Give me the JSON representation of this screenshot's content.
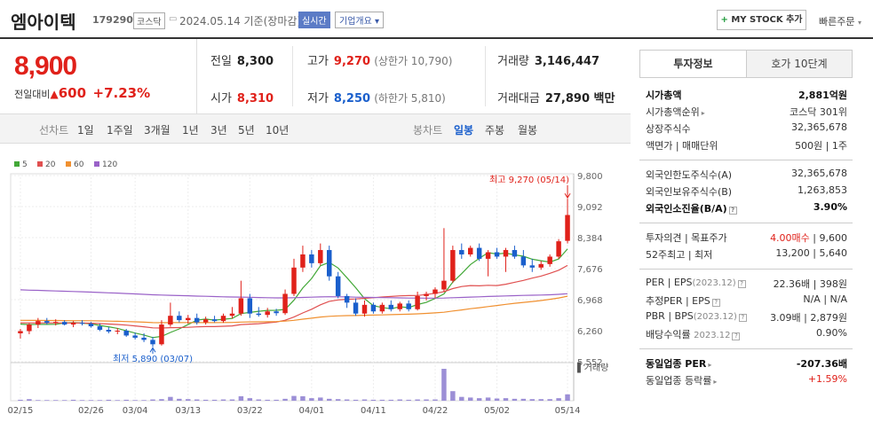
{
  "header": {
    "name": "엠아이텍",
    "code": "179290",
    "market": "코스닥",
    "date": "2024.05.14 기준(장마감)",
    "realtime": "실시간",
    "company_info": "기업개요",
    "mystock": "MY STOCK 추가",
    "quick_order": "빠른주문"
  },
  "price": {
    "current": "8,900",
    "change_label": "전일대비",
    "change": "600",
    "change_pct": "+7.23%"
  },
  "stats": {
    "prev_label": "전일",
    "prev": "8,300",
    "open_label": "시가",
    "open": "8,310",
    "high_label": "고가",
    "high": "9,270",
    "high_limit": "(상한가 10,790)",
    "low_label": "저가",
    "low": "8,250",
    "low_limit": "(하한가 5,810)",
    "volume_label": "거래량",
    "volume": "3,146,447",
    "amount_label": "거래대금",
    "amount": "27,890 백만"
  },
  "periods": {
    "line_label": "선차트",
    "line_items": [
      "1일",
      "1주일",
      "3개월",
      "1년",
      "3년",
      "5년",
      "10년"
    ],
    "candle_label": "봉차트",
    "candle_items": [
      "일봉",
      "주봉",
      "월봉"
    ],
    "selected_candle": "일봉"
  },
  "chart_data": {
    "type": "candlestick",
    "legend": [
      {
        "name": "5",
        "color": "#43a838"
      },
      {
        "name": "20",
        "color": "#e05050"
      },
      {
        "name": "60",
        "color": "#f09030"
      },
      {
        "name": "120",
        "color": "#9a62c8"
      }
    ],
    "y_ticks": [
      "9,800",
      "9,092",
      "8,384",
      "7,676",
      "6,968",
      "6,260",
      "5,552"
    ],
    "ylim": [
      5552,
      9800
    ],
    "x_ticks": [
      "02/15",
      "02/26",
      "03/04",
      "03/13",
      "03/22",
      "04/01",
      "04/11",
      "04/22",
      "05/02",
      "05/14"
    ],
    "high_annotation": "최고 9,270 (05/14)",
    "low_annotation": "최저 5,890 (03/07)",
    "volume_label": "거래량",
    "candles": [
      {
        "o": 6200,
        "h": 6300,
        "l": 6080,
        "c": 6250
      },
      {
        "o": 6250,
        "h": 6430,
        "l": 6180,
        "c": 6400
      },
      {
        "o": 6400,
        "h": 6550,
        "l": 6320,
        "c": 6480
      },
      {
        "o": 6480,
        "h": 6550,
        "l": 6400,
        "c": 6440
      },
      {
        "o": 6440,
        "h": 6520,
        "l": 6380,
        "c": 6460
      },
      {
        "o": 6460,
        "h": 6500,
        "l": 6380,
        "c": 6400
      },
      {
        "o": 6400,
        "h": 6480,
        "l": 6340,
        "c": 6440
      },
      {
        "o": 6440,
        "h": 6500,
        "l": 6380,
        "c": 6420
      },
      {
        "o": 6420,
        "h": 6460,
        "l": 6330,
        "c": 6360
      },
      {
        "o": 6360,
        "h": 6420,
        "l": 6250,
        "c": 6280
      },
      {
        "o": 6280,
        "h": 6340,
        "l": 6200,
        "c": 6240
      },
      {
        "o": 6240,
        "h": 6320,
        "l": 6180,
        "c": 6260
      },
      {
        "o": 6260,
        "h": 6300,
        "l": 6120,
        "c": 6150
      },
      {
        "o": 6150,
        "h": 6220,
        "l": 6060,
        "c": 6100
      },
      {
        "o": 6100,
        "h": 6200,
        "l": 6000,
        "c": 6050
      },
      {
        "o": 6050,
        "h": 6120,
        "l": 5890,
        "c": 5950
      },
      {
        "o": 5950,
        "h": 6500,
        "l": 5920,
        "c": 6400
      },
      {
        "o": 6400,
        "h": 6900,
        "l": 6350,
        "c": 6600
      },
      {
        "o": 6600,
        "h": 6700,
        "l": 6450,
        "c": 6500
      },
      {
        "o": 6500,
        "h": 6620,
        "l": 6420,
        "c": 6550
      },
      {
        "o": 6550,
        "h": 6650,
        "l": 6400,
        "c": 6450
      },
      {
        "o": 6450,
        "h": 6580,
        "l": 6400,
        "c": 6520
      },
      {
        "o": 6520,
        "h": 6600,
        "l": 6450,
        "c": 6480
      },
      {
        "o": 6480,
        "h": 6650,
        "l": 6440,
        "c": 6600
      },
      {
        "o": 6600,
        "h": 6800,
        "l": 6540,
        "c": 6650
      },
      {
        "o": 6650,
        "h": 7400,
        "l": 6600,
        "c": 7000
      },
      {
        "o": 7000,
        "h": 7100,
        "l": 6550,
        "c": 6650
      },
      {
        "o": 6650,
        "h": 6800,
        "l": 6580,
        "c": 6620
      },
      {
        "o": 6620,
        "h": 6780,
        "l": 6560,
        "c": 6700
      },
      {
        "o": 6700,
        "h": 6760,
        "l": 6600,
        "c": 6660
      },
      {
        "o": 6660,
        "h": 7200,
        "l": 6620,
        "c": 7100
      },
      {
        "o": 7100,
        "h": 7900,
        "l": 7050,
        "c": 7700
      },
      {
        "o": 7700,
        "h": 8200,
        "l": 7600,
        "c": 8000
      },
      {
        "o": 8000,
        "h": 8100,
        "l": 7700,
        "c": 7800
      },
      {
        "o": 7800,
        "h": 8250,
        "l": 7750,
        "c": 8100
      },
      {
        "o": 8100,
        "h": 8200,
        "l": 7400,
        "c": 7500
      },
      {
        "o": 7500,
        "h": 7600,
        "l": 7000,
        "c": 7050
      },
      {
        "o": 7050,
        "h": 7100,
        "l": 6780,
        "c": 6900
      },
      {
        "o": 6900,
        "h": 7000,
        "l": 6600,
        "c": 6650
      },
      {
        "o": 6650,
        "h": 6950,
        "l": 6580,
        "c": 6850
      },
      {
        "o": 6850,
        "h": 6900,
        "l": 6650,
        "c": 6700
      },
      {
        "o": 6700,
        "h": 6900,
        "l": 6650,
        "c": 6850
      },
      {
        "o": 6850,
        "h": 6950,
        "l": 6700,
        "c": 6750
      },
      {
        "o": 6750,
        "h": 6920,
        "l": 6700,
        "c": 6880
      },
      {
        "o": 6880,
        "h": 6950,
        "l": 6700,
        "c": 6750
      },
      {
        "o": 6750,
        "h": 7150,
        "l": 6720,
        "c": 7050
      },
      {
        "o": 7050,
        "h": 7150,
        "l": 6950,
        "c": 7100
      },
      {
        "o": 7100,
        "h": 7250,
        "l": 7000,
        "c": 7200
      },
      {
        "o": 7200,
        "h": 8600,
        "l": 7150,
        "c": 7400
      },
      {
        "o": 7400,
        "h": 8200,
        "l": 7350,
        "c": 8100
      },
      {
        "o": 8100,
        "h": 8250,
        "l": 7900,
        "c": 8000
      },
      {
        "o": 8000,
        "h": 8200,
        "l": 7950,
        "c": 8150
      },
      {
        "o": 8150,
        "h": 8250,
        "l": 7850,
        "c": 7900
      },
      {
        "o": 7900,
        "h": 8100,
        "l": 7500,
        "c": 8050
      },
      {
        "o": 8050,
        "h": 8150,
        "l": 7900,
        "c": 7950
      },
      {
        "o": 7950,
        "h": 8150,
        "l": 7600,
        "c": 8100
      },
      {
        "o": 8100,
        "h": 8200,
        "l": 7900,
        "c": 7950
      },
      {
        "o": 7950,
        "h": 8100,
        "l": 7700,
        "c": 7750
      },
      {
        "o": 7750,
        "h": 7900,
        "l": 7600,
        "c": 7700
      },
      {
        "o": 7700,
        "h": 7850,
        "l": 7650,
        "c": 7780
      },
      {
        "o": 7780,
        "h": 8000,
        "l": 7720,
        "c": 7950
      },
      {
        "o": 7950,
        "h": 8350,
        "l": 7900,
        "c": 8300
      },
      {
        "o": 8310,
        "h": 9270,
        "l": 8250,
        "c": 8900
      }
    ],
    "volumes": [
      3,
      5,
      2,
      2,
      2,
      2,
      3,
      2,
      2,
      2,
      3,
      2,
      3,
      2,
      2,
      4,
      5,
      12,
      6,
      5,
      4,
      3,
      3,
      4,
      4,
      14,
      8,
      4,
      3,
      3,
      6,
      15,
      14,
      8,
      10,
      6,
      5,
      4,
      3,
      4,
      3,
      3,
      3,
      4,
      3,
      4,
      4,
      4,
      100,
      30,
      12,
      10,
      8,
      10,
      7,
      8,
      6,
      6,
      5,
      5,
      5,
      8,
      20
    ]
  },
  "panel": {
    "tab_invest": "투자정보",
    "tab_quote": "호가 10단계",
    "group1": [
      {
        "k": "시가총액",
        "v": "2,881억원",
        "bold": true
      },
      {
        "k": "시가총액순위",
        "v": "코스닥 301위"
      },
      {
        "k": "상장주식수",
        "v": "32,365,678"
      },
      {
        "k": "액면가 | 매매단위",
        "v": "500원 | 1주"
      }
    ],
    "group2": [
      {
        "k": "외국인한도주식수(A)",
        "v": "32,365,678"
      },
      {
        "k": "외국인보유주식수(B)",
        "v": "1,263,853"
      },
      {
        "k": "외국인소진율(B/A)",
        "v": "3.90%",
        "bold": true
      }
    ],
    "group3": [
      {
        "k": "투자의견 | 목표주가",
        "v_red": "4.00매수",
        "v": " | 9,600"
      },
      {
        "k": "52주최고 | 최저",
        "v": "13,200 | 5,640"
      }
    ],
    "group4": [
      {
        "k": "PER | EPS",
        "note": "(2023.12)",
        "v": "22.36배 | 398원"
      },
      {
        "k": "추정PER | EPS",
        "note": "",
        "v": "N/A | N/A"
      },
      {
        "k": "PBR | BPS",
        "note": "(2023.12)",
        "v": "3.09배 | 2,879원"
      },
      {
        "k": "배당수익률",
        "note": "2023.12",
        "v": "0.90%"
      }
    ],
    "group5": [
      {
        "k": "동일업종 PER",
        "v": "-207.36배",
        "bold": true
      },
      {
        "k": "동일업종 등락률",
        "v": "+1.59%",
        "red": true
      }
    ]
  }
}
